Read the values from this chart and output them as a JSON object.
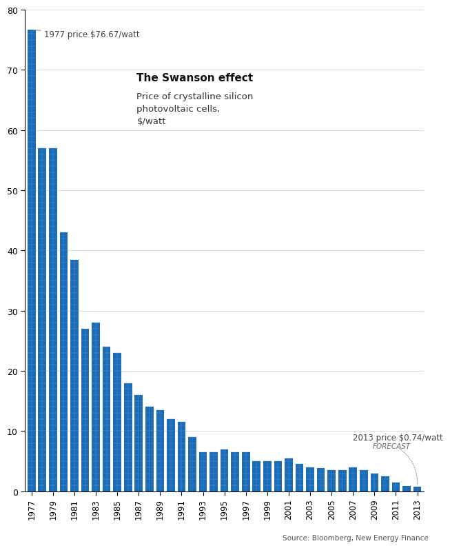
{
  "years": [
    1977,
    1978,
    1979,
    1980,
    1981,
    1982,
    1983,
    1984,
    1985,
    1986,
    1987,
    1988,
    1989,
    1990,
    1991,
    1992,
    1993,
    1994,
    1995,
    1996,
    1997,
    1998,
    1999,
    2000,
    2001,
    2002,
    2003,
    2004,
    2005,
    2006,
    2007,
    2008,
    2009,
    2010,
    2011,
    2012,
    2013
  ],
  "prices": [
    76.67,
    57.0,
    57.0,
    43.0,
    38.5,
    27.0,
    28.0,
    24.0,
    23.0,
    18.0,
    16.0,
    14.0,
    13.5,
    12.0,
    11.5,
    9.0,
    6.5,
    6.5,
    7.0,
    6.5,
    6.5,
    5.0,
    5.0,
    5.0,
    5.5,
    4.5,
    4.0,
    3.9,
    3.5,
    3.5,
    4.0,
    3.5,
    3.0,
    2.5,
    1.5,
    0.9,
    0.74
  ],
  "bar_color_main": "#1a6bb5",
  "bar_color_grid_line": "#4a9ae0",
  "bar_color_cell_bg": "#1565c0",
  "background_color": "#ffffff",
  "title_bold": "The Swanson effect",
  "title_sub": "Price of crystalline silicon\nphotovoltaic cells,\n$/watt",
  "annotation_1977": "1977 price $76.67/watt",
  "annotation_2013": "2013 price $0.74/watt",
  "annotation_forecast": "FORECAST",
  "source_text": "Source: Bloomberg, New Energy Finance",
  "ylim": [
    0,
    80
  ],
  "yticks": [
    0,
    10,
    20,
    30,
    40,
    50,
    60,
    70,
    80
  ],
  "xlabel_years": [
    1977,
    1979,
    1981,
    1983,
    1985,
    1987,
    1989,
    1991,
    1993,
    1995,
    1997,
    1999,
    2001,
    2003,
    2005,
    2007,
    2009,
    2011,
    2013
  ]
}
